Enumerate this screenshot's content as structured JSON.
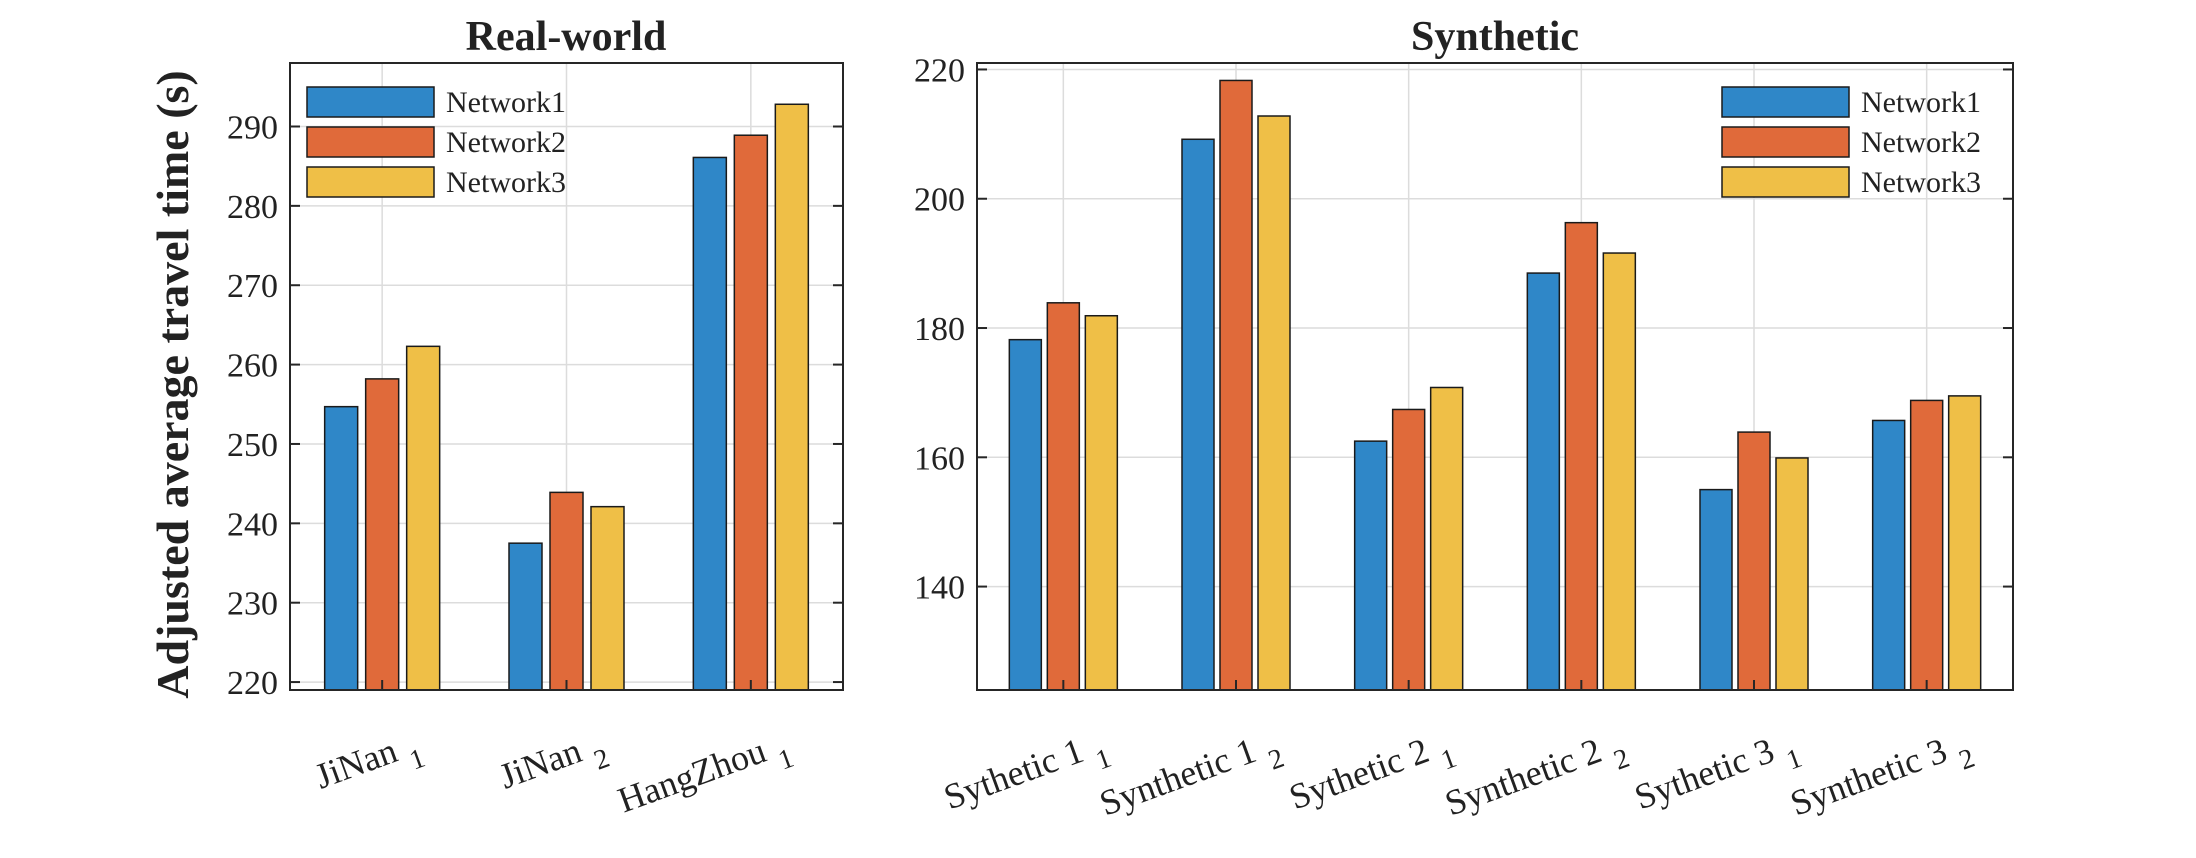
{
  "chart_data": [
    {
      "type": "bar",
      "title": "Real-world",
      "ylabel": "Adjusted average travel time (s)",
      "xlabel": "",
      "ylim": [
        219,
        298
      ],
      "yticks": [
        220,
        230,
        240,
        250,
        260,
        270,
        280,
        290
      ],
      "grid": true,
      "legend_position": "top-left",
      "categories": [
        {
          "base": "JiNan",
          "sub": "1"
        },
        {
          "base": "JiNan",
          "sub": "2"
        },
        {
          "base": "HangZhou",
          "sub": "1"
        }
      ],
      "series": [
        {
          "name": "Network1",
          "values": [
            254.7,
            237.5,
            286.1
          ]
        },
        {
          "name": "Network2",
          "values": [
            258.2,
            243.9,
            288.9
          ]
        },
        {
          "name": "Network3",
          "values": [
            262.3,
            242.1,
            292.8
          ]
        }
      ]
    },
    {
      "type": "bar",
      "title": "Synthetic",
      "ylabel": "",
      "xlabel": "",
      "ylim": [
        124,
        221
      ],
      "yticks": [
        140,
        160,
        180,
        200,
        220
      ],
      "grid": true,
      "legend_position": "top-right",
      "categories": [
        {
          "base": "Sythetic 1",
          "sub": "1"
        },
        {
          "base": "Synthetic 1",
          "sub": "2"
        },
        {
          "base": "Sythetic 2",
          "sub": "1"
        },
        {
          "base": "Synthetic 2",
          "sub": "2"
        },
        {
          "base": "Sythetic 3",
          "sub": "1"
        },
        {
          "base": "Synthetic 3",
          "sub": "2"
        }
      ],
      "series": [
        {
          "name": "Network1",
          "values": [
            178.2,
            209.2,
            162.5,
            188.5,
            155.0,
            165.7
          ]
        },
        {
          "name": "Network2",
          "values": [
            183.9,
            218.3,
            167.4,
            196.3,
            163.9,
            168.8
          ]
        },
        {
          "name": "Network3",
          "values": [
            181.9,
            212.8,
            170.8,
            191.6,
            159.9,
            169.5
          ]
        }
      ]
    }
  ],
  "colors": {
    "Network1": "#2f87c8",
    "Network2": "#e06a3a",
    "Network3": "#efbf47",
    "grid": "#dcdcdc",
    "axis": "#262626"
  }
}
